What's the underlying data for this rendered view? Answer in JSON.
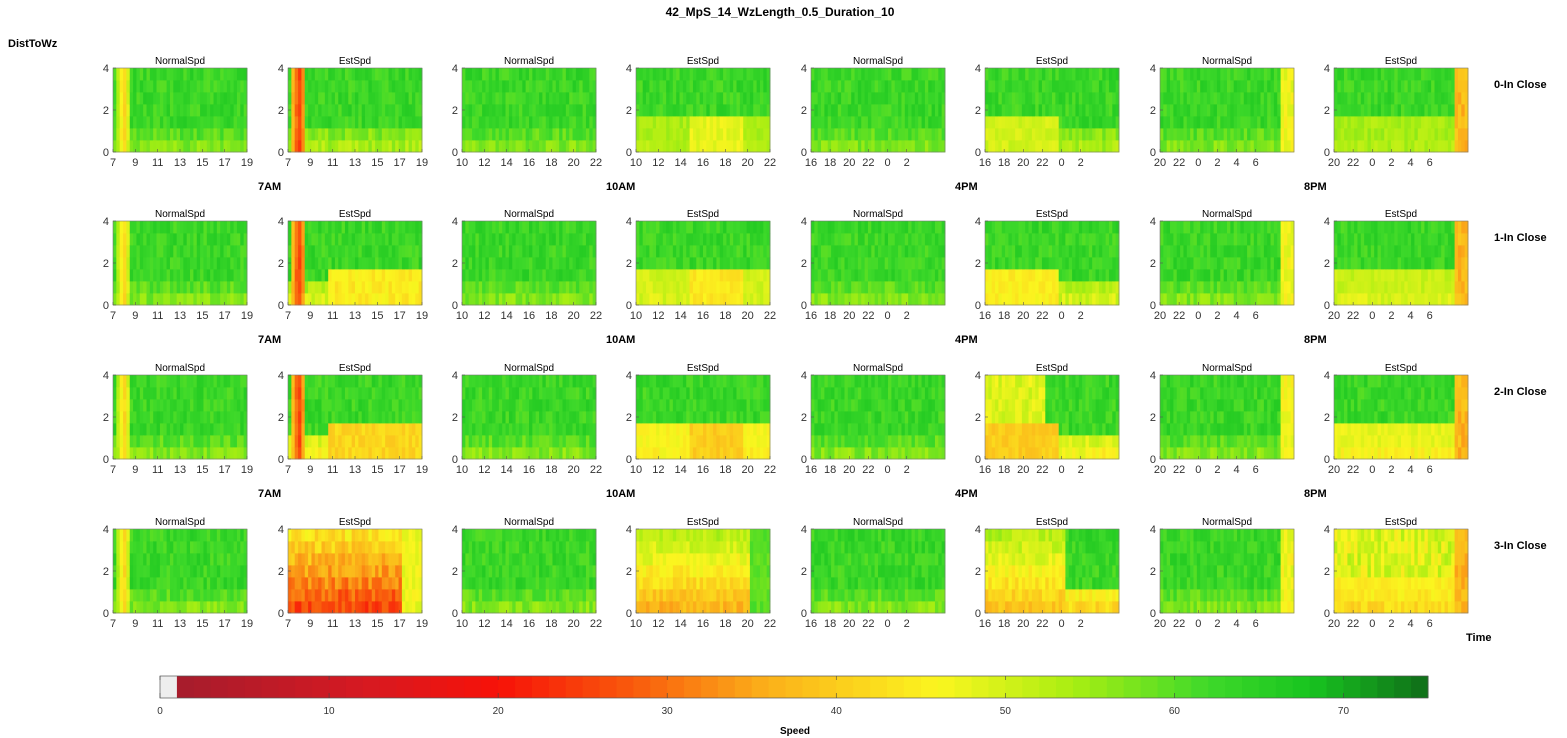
{
  "figure": {
    "title": "42_MpS_14_WzLength_0.5_Duration_10",
    "ylabel": "DistToWz",
    "xlabel": "Time",
    "colorbar_label": "Speed"
  },
  "chart_data": {
    "type": "heatmap",
    "panel_titles": [
      "NormalSpd",
      "EstSpd"
    ],
    "row_labels": [
      "0-In Close",
      "1-In Close",
      "2-In Close",
      "3-In Close"
    ],
    "group_labels": [
      "7AM",
      "10AM",
      "4PM",
      "8PM"
    ],
    "y_ticks": [
      "0",
      "2",
      "4"
    ],
    "ylim": [
      0,
      4
    ],
    "x_ticks": [
      [
        "7",
        "9",
        "11",
        "13",
        "15",
        "17",
        "19"
      ],
      [
        "10",
        "12",
        "14",
        "16",
        "18",
        "20",
        "22"
      ],
      [
        "16",
        "18",
        "20",
        "22",
        "0",
        "2"
      ],
      [
        "20",
        "22",
        "0",
        "2",
        "4",
        "6"
      ]
    ],
    "colorbar": {
      "min": 0,
      "max": 75,
      "ticks": [
        "0",
        "10",
        "20",
        "30",
        "40",
        "50",
        "60",
        "70"
      ],
      "stops": [
        {
          "v": 0,
          "c": "#eeeeee"
        },
        {
          "v": 1.2,
          "c": "#eeeeee"
        },
        {
          "v": 1.3,
          "c": "#a71c2c"
        },
        {
          "v": 12,
          "c": "#d61922"
        },
        {
          "v": 20,
          "c": "#f71108"
        },
        {
          "v": 28,
          "c": "#f95b0c"
        },
        {
          "v": 36,
          "c": "#fbb11a"
        },
        {
          "v": 46,
          "c": "#fbf51f"
        },
        {
          "v": 54,
          "c": "#a9ee12"
        },
        {
          "v": 62,
          "c": "#3ed92a"
        },
        {
          "v": 68,
          "c": "#18c41f"
        },
        {
          "v": 75,
          "c": "#0f6d18"
        }
      ]
    }
  }
}
